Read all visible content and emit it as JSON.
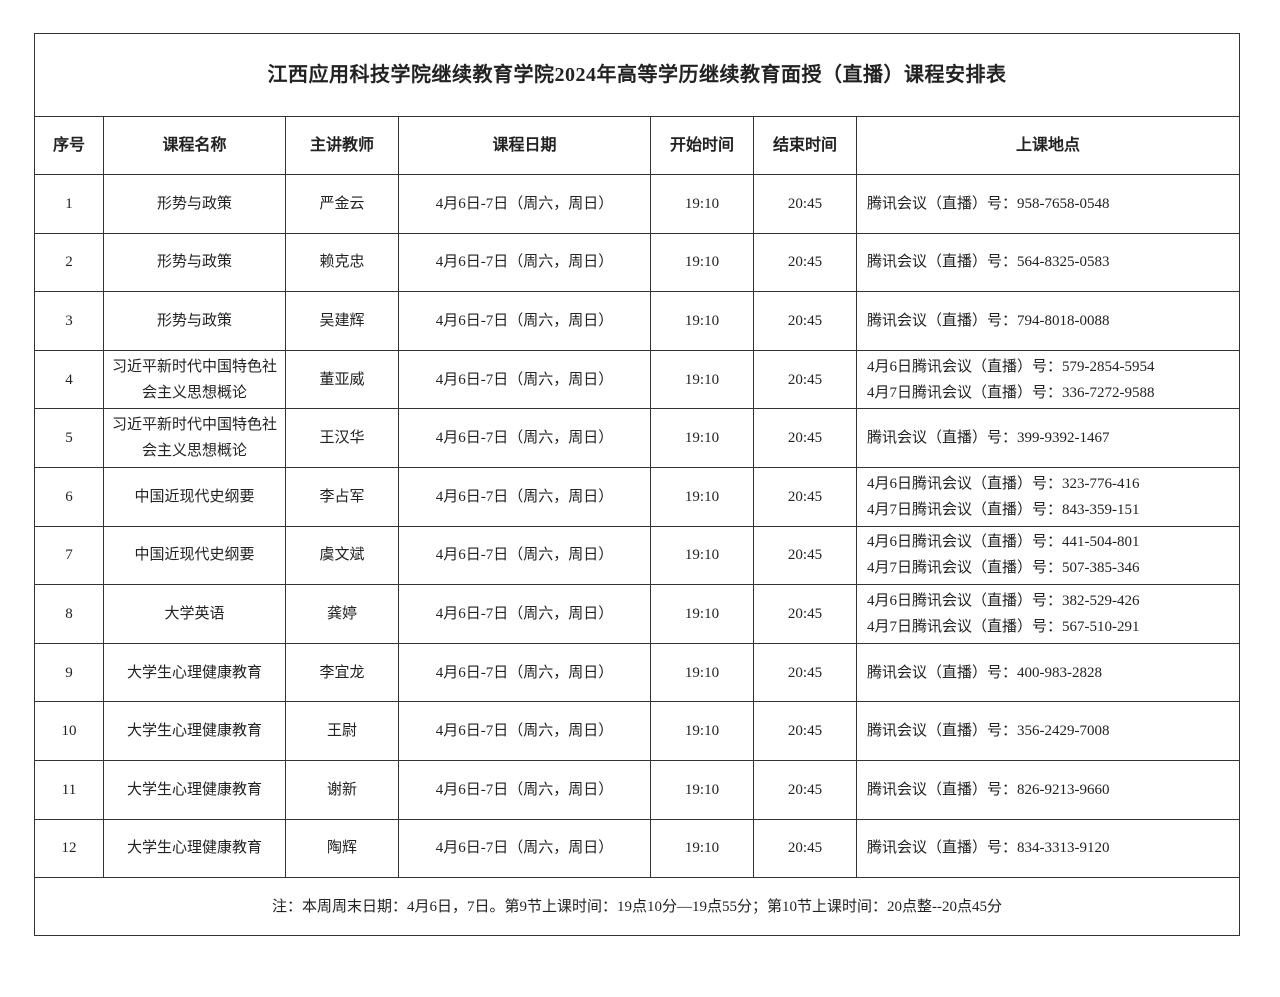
{
  "title": "江西应用科技学院继续教育学院2024年高等学历继续教育面授（直播）课程安排表",
  "headers": [
    "序号",
    "课程名称",
    "主讲教师",
    "课程日期",
    "开始时间",
    "结束时间",
    "上课地点"
  ],
  "rows": [
    {
      "no": "1",
      "course": "形势与政策",
      "teacher": "严金云",
      "date": "4月6日-7日（周六，周日）",
      "start": "19:10",
      "end": "20:45",
      "loc": [
        "腾讯会议（直播）号：958-7658-0548"
      ]
    },
    {
      "no": "2",
      "course": "形势与政策",
      "teacher": "赖克忠",
      "date": "4月6日-7日（周六，周日）",
      "start": "19:10",
      "end": "20:45",
      "loc": [
        "腾讯会议（直播）号：564-8325-0583"
      ]
    },
    {
      "no": "3",
      "course": "形势与政策",
      "teacher": "吴建辉",
      "date": "4月6日-7日（周六，周日）",
      "start": "19:10",
      "end": "20:45",
      "loc": [
        "腾讯会议（直播）号：794-8018-0088"
      ]
    },
    {
      "no": "4",
      "course": "习近平新时代中国特色社会主义思想概论",
      "teacher": "董亚威",
      "date": "4月6日-7日（周六，周日）",
      "start": "19:10",
      "end": "20:45",
      "loc": [
        "4月6日腾讯会议（直播）号：579-2854-5954",
        "4月7日腾讯会议（直播）号：336-7272-9588"
      ]
    },
    {
      "no": "5",
      "course": "习近平新时代中国特色社会主义思想概论",
      "teacher": "王汉华",
      "date": "4月6日-7日（周六，周日）",
      "start": "19:10",
      "end": "20:45",
      "loc": [
        "腾讯会议（直播）号：399-9392-1467"
      ]
    },
    {
      "no": "6",
      "course": "中国近现代史纲要",
      "teacher": "李占军",
      "date": "4月6日-7日（周六，周日）",
      "start": "19:10",
      "end": "20:45",
      "loc": [
        "4月6日腾讯会议（直播）号：323-776-416",
        "4月7日腾讯会议（直播）号：843-359-151"
      ]
    },
    {
      "no": "7",
      "course": "中国近现代史纲要",
      "teacher": "虞文斌",
      "date": "4月6日-7日（周六，周日）",
      "start": "19:10",
      "end": "20:45",
      "loc": [
        "4月6日腾讯会议（直播）号：441-504-801",
        "4月7日腾讯会议（直播）号：507-385-346"
      ]
    },
    {
      "no": "8",
      "course": "大学英语",
      "teacher": "龚婷",
      "date": "4月6日-7日（周六，周日）",
      "start": "19:10",
      "end": "20:45",
      "loc": [
        "4月6日腾讯会议（直播）号：382-529-426",
        "4月7日腾讯会议（直播）号：567-510-291"
      ]
    },
    {
      "no": "9",
      "course": "大学生心理健康教育",
      "teacher": "李宜龙",
      "date": "4月6日-7日（周六，周日）",
      "start": "19:10",
      "end": "20:45",
      "loc": [
        "腾讯会议（直播）号：400-983-2828"
      ]
    },
    {
      "no": "10",
      "course": "大学生心理健康教育",
      "teacher": "王尉",
      "date": "4月6日-7日（周六，周日）",
      "start": "19:10",
      "end": "20:45",
      "loc": [
        "腾讯会议（直播）号：356-2429-7008"
      ]
    },
    {
      "no": "11",
      "course": "大学生心理健康教育",
      "teacher": "谢新",
      "date": "4月6日-7日（周六，周日）",
      "start": "19:10",
      "end": "20:45",
      "loc": [
        "腾讯会议（直播）号：826-9213-9660"
      ]
    },
    {
      "no": "12",
      "course": "大学生心理健康教育",
      "teacher": "陶辉",
      "date": "4月6日-7日（周六，周日）",
      "start": "19:10",
      "end": "20:45",
      "loc": [
        "腾讯会议（直播）号：834-3313-9120"
      ]
    }
  ],
  "note": "注：本周周末日期：4月6日，7日。第9节上课时间：19点10分—19点55分；第10节上课时间：20点整--20点45分"
}
